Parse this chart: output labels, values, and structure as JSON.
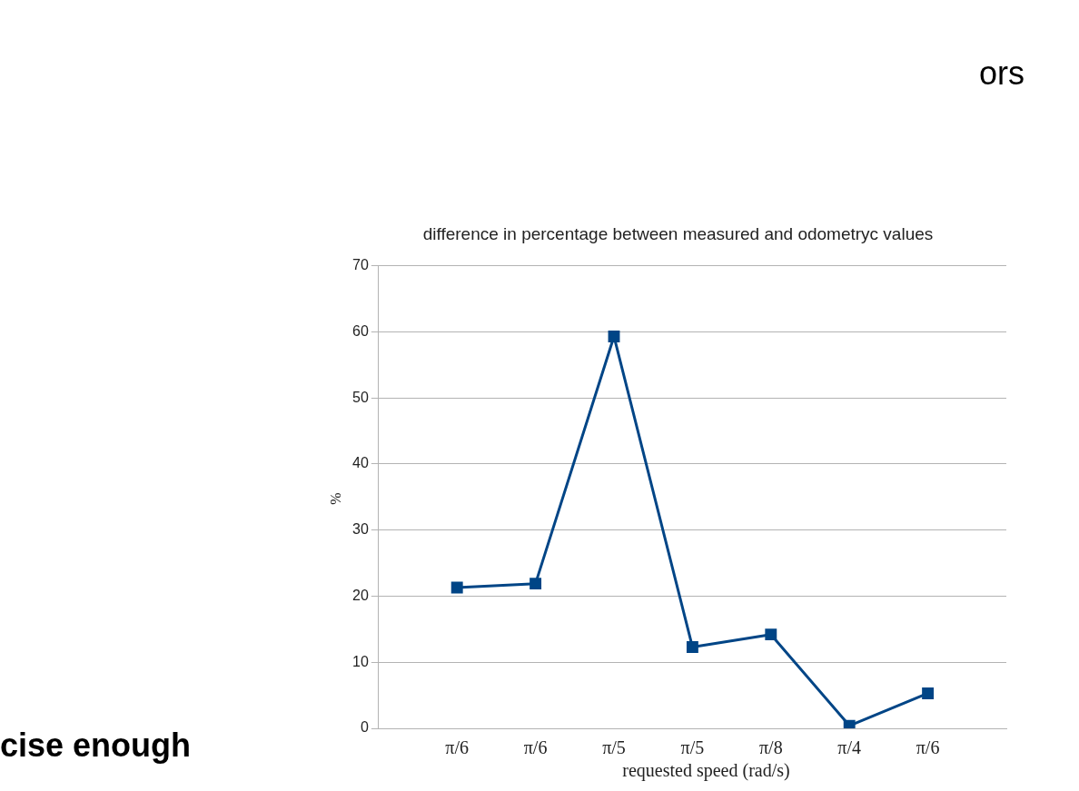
{
  "chart_data": {
    "type": "line",
    "title": "difference in percentage between measured and odometryc values",
    "xlabel": "requested speed (rad/s)",
    "ylabel": "%",
    "categories": [
      "π/6",
      "π/6",
      "π/5",
      "π/5",
      "π/8",
      "π/4",
      "π/6"
    ],
    "series": [
      {
        "color": "#004586",
        "values": [
          21.3,
          21.9,
          59.3,
          12.3,
          14.2,
          0.4,
          5.3
        ]
      }
    ],
    "ylim": [
      0,
      70
    ],
    "yticks": [
      0,
      10,
      20,
      30,
      40,
      50,
      60,
      70
    ],
    "grid": "y",
    "legend": false,
    "marker": "square",
    "line_style": "solid",
    "annotations": [
      "ors",
      "cise enough"
    ]
  }
}
